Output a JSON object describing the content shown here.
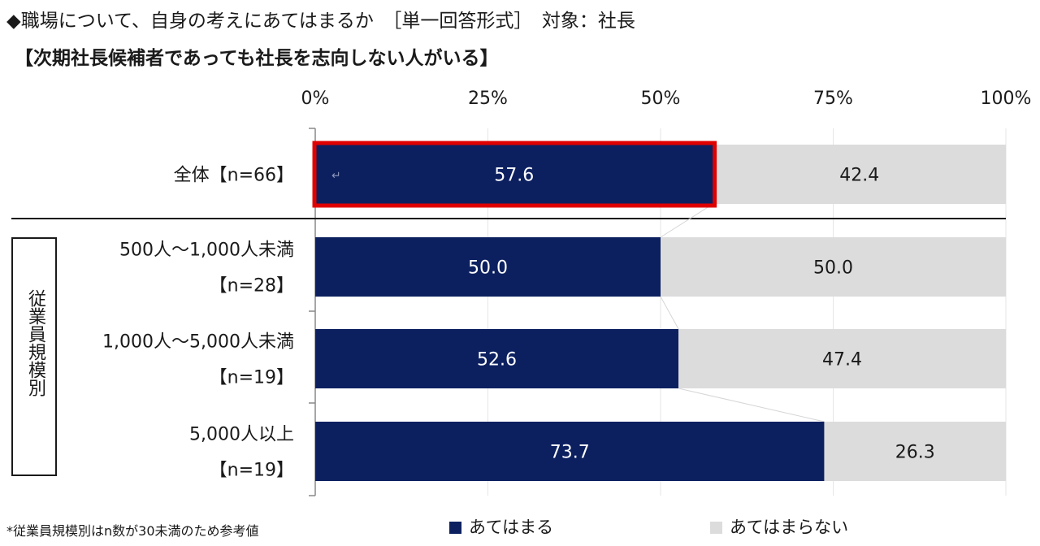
{
  "title_line1": "◆職場について、自身の考えにあてはまるか　［単一回答形式］　対象：社長",
  "title_line2": "【次期社長候補者であっても社長を志向しない人がいる】",
  "group_label": "従業員規模別",
  "footnote": "*従業員規模別はn数が30未満のため参考値",
  "colors": {
    "agree": "#0c2060",
    "disagree": "#dcdcdc",
    "highlight": "#e00000"
  },
  "chart_data": {
    "type": "bar",
    "orientation": "horizontal",
    "stacked": true,
    "percent_axis": true,
    "xlim": [
      0,
      100
    ],
    "x_ticks": [
      "0%",
      "25%",
      "50%",
      "75%",
      "100%"
    ],
    "categories": [
      [
        "全体【n=66】"
      ],
      [
        "500人～1,000人未満",
        "【n=28】"
      ],
      [
        "1,000人～5,000人未満",
        "【n=19】"
      ],
      [
        "5,000人以上",
        "【n=19】"
      ]
    ],
    "series": [
      {
        "name": "あてはまる",
        "values": [
          57.6,
          50.0,
          52.6,
          73.7
        ],
        "labels": [
          "57.6",
          "50.0",
          "52.6",
          "73.7"
        ]
      },
      {
        "name": "あてはまらない",
        "values": [
          42.4,
          50.0,
          47.4,
          26.3
        ],
        "labels": [
          "42.4",
          "50.0",
          "47.4",
          "26.3"
        ]
      }
    ],
    "highlighted": {
      "category_index": 0,
      "series_index": 0
    },
    "legend_position": "bottom"
  }
}
